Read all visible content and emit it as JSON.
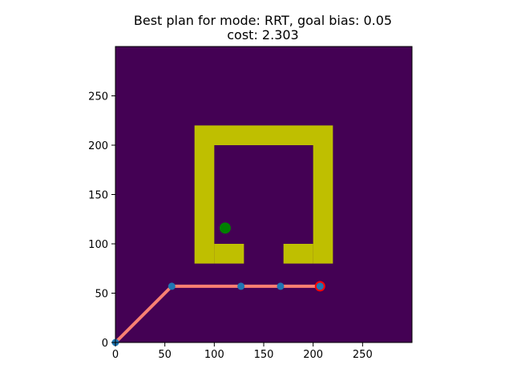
{
  "title_line1": "Best plan for mode: RRT, goal bias: 0.05",
  "title_line2": "cost: 2.303",
  "chart_data": {
    "type": "scatter",
    "subtype": "occupancy-grid-path-plot",
    "title": "Best plan for mode: RRT, goal bias: 0.05\ncost: 2.303",
    "xlabel": "",
    "ylabel": "",
    "xlim": [
      0,
      300
    ],
    "ylim": [
      0,
      300
    ],
    "x_ticks": [
      0,
      50,
      100,
      150,
      200,
      250
    ],
    "y_ticks": [
      0,
      50,
      100,
      150,
      200,
      250
    ],
    "grid": false,
    "colors": {
      "free_space": "#440154",
      "obstacle": "#bfbf00",
      "path_line": "#fa8072",
      "waypoint": "#1f77b4",
      "start": "#008000",
      "goal_ring": "#ff0000"
    },
    "obstacles": [
      {
        "x": [
          80,
          220
        ],
        "y": [
          200,
          220
        ]
      },
      {
        "x": [
          80,
          100
        ],
        "y": [
          80,
          200
        ]
      },
      {
        "x": [
          200,
          220
        ],
        "y": [
          80,
          200
        ]
      },
      {
        "x": [
          100,
          130
        ],
        "y": [
          80,
          100
        ]
      },
      {
        "x": [
          170,
          200
        ],
        "y": [
          80,
          100
        ]
      }
    ],
    "start": {
      "x": 111,
      "y": 116
    },
    "goal": {
      "x": 207,
      "y": 57
    },
    "path": [
      {
        "x": 0,
        "y": 0
      },
      {
        "x": 57,
        "y": 57
      },
      {
        "x": 127,
        "y": 57
      },
      {
        "x": 167,
        "y": 57
      },
      {
        "x": 207,
        "y": 57
      }
    ]
  }
}
